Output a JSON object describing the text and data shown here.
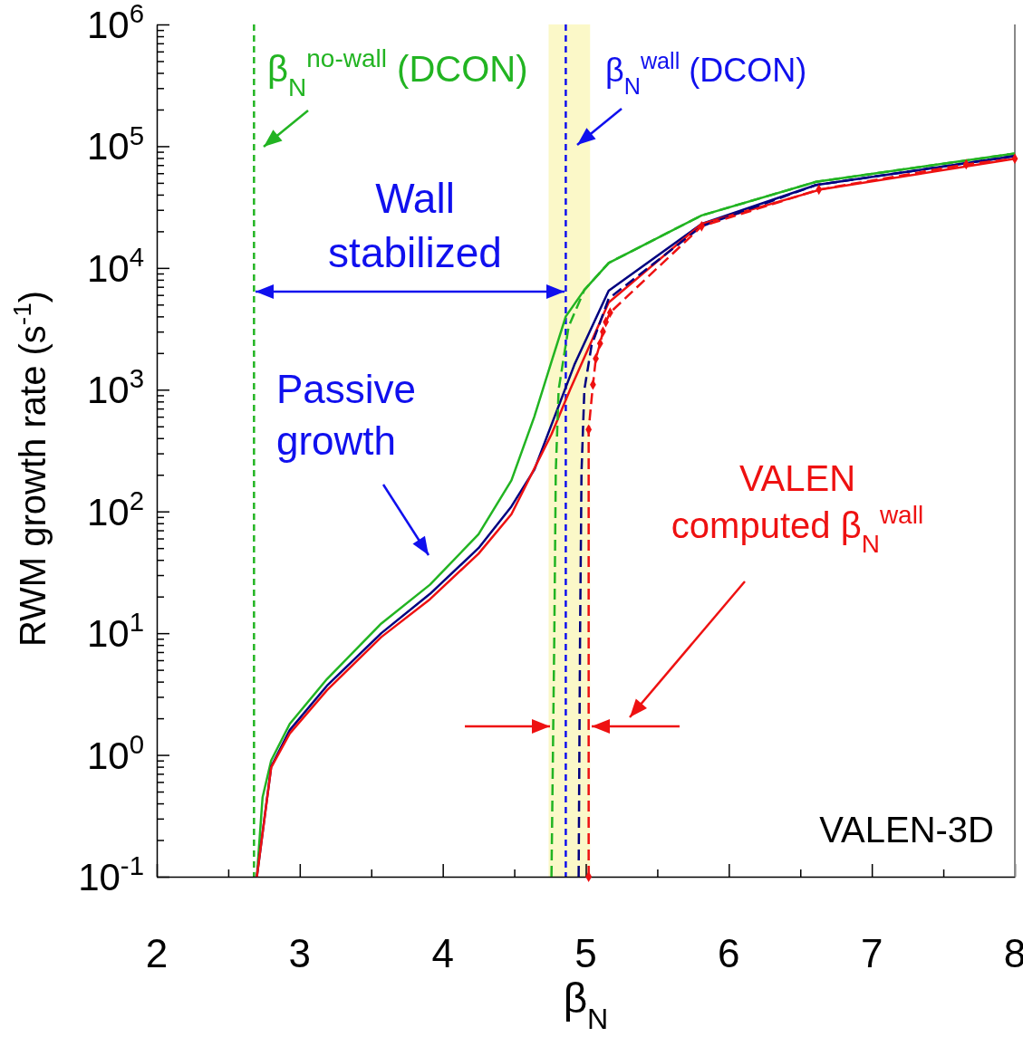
{
  "chart_data": {
    "type": "line",
    "xlabel": "β$_{N}$",
    "ylabel": "RWM growth rate (s$^{-1}$)",
    "log": "y",
    "grid": false,
    "xlim": [
      2,
      8
    ],
    "ylim": [
      0.1,
      1000000
    ],
    "xticks": [
      2,
      {
        "value": 2.5,
        "label": null
      },
      3,
      {
        "value": 3.5,
        "label": null
      },
      4,
      {
        "value": 4.5,
        "label": null
      },
      5,
      {
        "value": 5.5,
        "label": null
      },
      6,
      {
        "value": 6.5,
        "label": null
      },
      7,
      {
        "value": 7.5,
        "label": null
      },
      8
    ],
    "yticks": [
      {
        "value": 0.1,
        "label": "10$^{-1}$"
      },
      {
        "value": 0.2,
        "label": null
      },
      {
        "value": 0.3,
        "label": null
      },
      {
        "value": 0.4,
        "label": null
      },
      {
        "value": 0.5,
        "label": null
      },
      {
        "value": 0.6,
        "label": null
      },
      {
        "value": 0.7,
        "label": null
      },
      {
        "value": 0.8,
        "label": null
      },
      {
        "value": 0.9,
        "label": null
      },
      {
        "value": 1,
        "label": "10$^{0}$"
      },
      {
        "value": 2,
        "label": null
      },
      {
        "value": 3,
        "label": null
      },
      {
        "value": 4,
        "label": null
      },
      {
        "value": 5,
        "label": null
      },
      {
        "value": 6,
        "label": null
      },
      {
        "value": 7,
        "label": null
      },
      {
        "value": 8,
        "label": null
      },
      {
        "value": 9,
        "label": null
      },
      {
        "value": 10,
        "label": "10$^{1}$"
      },
      {
        "value": 20,
        "label": null
      },
      {
        "value": 30,
        "label": null
      },
      {
        "value": 40,
        "label": null
      },
      {
        "value": 50,
        "label": null
      },
      {
        "value": 60,
        "label": null
      },
      {
        "value": 70,
        "label": null
      },
      {
        "value": 80,
        "label": null
      },
      {
        "value": 90,
        "label": null
      },
      {
        "value": 100,
        "label": "10$^{2}$"
      },
      {
        "value": 200,
        "label": null
      },
      {
        "value": 300,
        "label": null
      },
      {
        "value": 400,
        "label": null
      },
      {
        "value": 500,
        "label": null
      },
      {
        "value": 600,
        "label": null
      },
      {
        "value": 700,
        "label": null
      },
      {
        "value": 800,
        "label": null
      },
      {
        "value": 900,
        "label": null
      },
      {
        "value": 1000,
        "label": "10$^{3}$"
      },
      {
        "value": 2000,
        "label": null
      },
      {
        "value": 3000,
        "label": null
      },
      {
        "value": 4000,
        "label": null
      },
      {
        "value": 5000,
        "label": null
      },
      {
        "value": 6000,
        "label": null
      },
      {
        "value": 7000,
        "label": null
      },
      {
        "value": 8000,
        "label": null
      },
      {
        "value": 9000,
        "label": null
      },
      {
        "value": 10000,
        "label": "10$^{4}$"
      },
      {
        "value": 20000,
        "label": null
      },
      {
        "value": 30000,
        "label": null
      },
      {
        "value": 40000,
        "label": null
      },
      {
        "value": 50000,
        "label": null
      },
      {
        "value": 60000,
        "label": null
      },
      {
        "value": 70000,
        "label": null
      },
      {
        "value": 80000,
        "label": null
      },
      {
        "value": 90000,
        "label": null
      },
      {
        "value": 100000,
        "label": "10$^{5}$"
      },
      {
        "value": 200000,
        "label": null
      },
      {
        "value": 300000,
        "label": null
      },
      {
        "value": 400000,
        "label": null
      },
      {
        "value": 500000,
        "label": null
      },
      {
        "value": 600000,
        "label": null
      },
      {
        "value": 700000,
        "label": null
      },
      {
        "value": 800000,
        "label": null
      },
      {
        "value": 900000,
        "label": null
      },
      {
        "value": 1000000,
        "label": "10$^{6}$"
      }
    ],
    "series": [
      {
        "color": "#22b422",
        "line_style": "solid",
        "x": [
          2.7,
          2.74,
          2.8,
          2.93,
          3.19,
          3.57,
          3.91,
          4.25,
          4.48,
          4.64,
          4.76,
          4.86,
          4.99,
          5.16,
          5.81,
          6.61,
          8.0
        ],
        "values": [
          0.1,
          0.45,
          0.9,
          1.8,
          4.2,
          12,
          25,
          65,
          180,
          600,
          1700,
          4000,
          6600,
          11000,
          27000,
          51000,
          87000
        ]
      },
      {
        "color": "#000080",
        "line_style": "solid",
        "x": [
          2.7,
          2.8,
          2.93,
          3.19,
          3.57,
          3.91,
          4.25,
          4.48,
          4.64,
          4.92,
          5.16,
          5.81,
          6.61,
          8.0
        ],
        "values": [
          0.1,
          0.8,
          1.6,
          3.7,
          10,
          21,
          50,
          110,
          220,
          1600,
          6500,
          23000,
          48000,
          83000
        ]
      },
      {
        "color": "#ee1111",
        "line_style": "solid",
        "x": [
          2.7,
          2.8,
          2.93,
          3.19,
          3.57,
          3.91,
          4.25,
          4.48,
          4.76,
          4.89,
          5.16,
          5.81,
          6.64,
          8.0
        ],
        "values": [
          0.1,
          0.79,
          1.5,
          3.4,
          9.3,
          19,
          45,
          95,
          430,
          1000,
          5200,
          23000,
          44000,
          79000
        ]
      },
      {
        "color": "#22b422",
        "line_style": "dashed",
        "x": [
          4.76,
          4.78,
          4.79,
          4.81,
          4.88,
          4.99,
          5.16,
          5.81,
          6.61,
          8.0
        ],
        "values": [
          0.1,
          10,
          210,
          1000,
          3300,
          6600,
          11000,
          27000,
          51000,
          87000
        ]
      },
      {
        "color": "#000080",
        "line_style": "dashed",
        "x": [
          4.95,
          4.96,
          4.97,
          4.99,
          5.04,
          5.16,
          5.81,
          6.61,
          8.0
        ],
        "values": [
          0.1,
          10,
          210,
          1000,
          2300,
          5600,
          22000,
          48000,
          83000
        ]
      },
      {
        "color": "#ee1111",
        "line_style": "dashed",
        "marker": "diamond",
        "x": [
          5.02,
          5.02,
          5.05,
          5.07,
          5.1,
          5.12,
          5.14,
          5.17,
          5.81,
          6.63,
          7.66,
          8.0
        ],
        "values": [
          0.1,
          470,
          1100,
          1800,
          2400,
          3000,
          3600,
          4300,
          22000,
          44000,
          71000,
          79000
        ]
      }
    ],
    "ref_lines": [
      {
        "axis": "x",
        "value": 2.68,
        "color": "#22b422",
        "line_style": "dashed"
      },
      {
        "axis": "x",
        "value": 4.86,
        "color": "#1010ee",
        "line_style": "dashed"
      }
    ],
    "bands": [
      {
        "axis": "x",
        "from": 4.74,
        "to": 5.03,
        "color": "#fbf8c8"
      }
    ],
    "annotations": [
      "β$_{N}$$^{no-wall}$ (DCON)",
      "β$_{N}$$^{wall}$ (DCON)",
      "Wall stabilized",
      "Passive growth",
      "VALEN computed β$_{N}$$^{wall}$",
      "VALEN-3D"
    ]
  }
}
